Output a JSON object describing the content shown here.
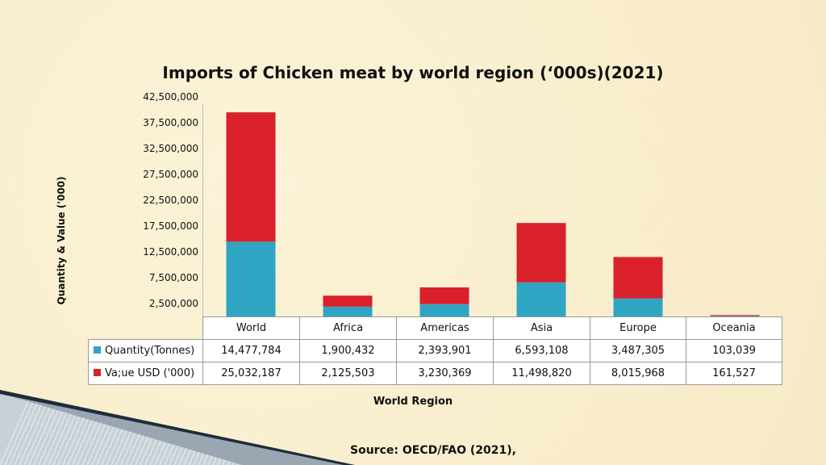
{
  "chart_data": {
    "type": "bar",
    "stacked": true,
    "title": "Imports of Chicken meat by world region (‘000s)(2021)",
    "xlabel": "World Region",
    "ylabel": "Quantity & Value ('000)",
    "categories": [
      "World",
      "Africa",
      "Americas",
      "Asia",
      "Europe",
      "Oceania"
    ],
    "series": [
      {
        "name": "Quantity(Tonnes)",
        "color": "#2fa5c4",
        "values": [
          14477784,
          1900432,
          2393901,
          6593108,
          3487305,
          103039
        ],
        "labels": [
          "14,477,784",
          "1,900,432",
          "2,393,901",
          "6,593,108",
          "3,487,305",
          "103,039"
        ]
      },
      {
        "name": "Va;ue USD ('000)",
        "color": "#d9202b",
        "values": [
          25032187,
          2125503,
          3230369,
          11498820,
          8015968,
          161527
        ],
        "labels": [
          "25,032,187",
          "2,125,503",
          "3,230,369",
          "11,498,820",
          "8,015,968",
          "161,527"
        ]
      }
    ],
    "yticks": [
      "2,500,000",
      "7,500,000",
      "12,500,000",
      "17,500,000",
      "22,500,000",
      "27,500,000",
      "32,500,000",
      "37,500,000",
      "42,500,000"
    ],
    "ylim": [
      0,
      42500000
    ],
    "grid": false,
    "legend": "data table"
  },
  "footer": {
    "source": "Source: OECD/FAO (2021),"
  }
}
